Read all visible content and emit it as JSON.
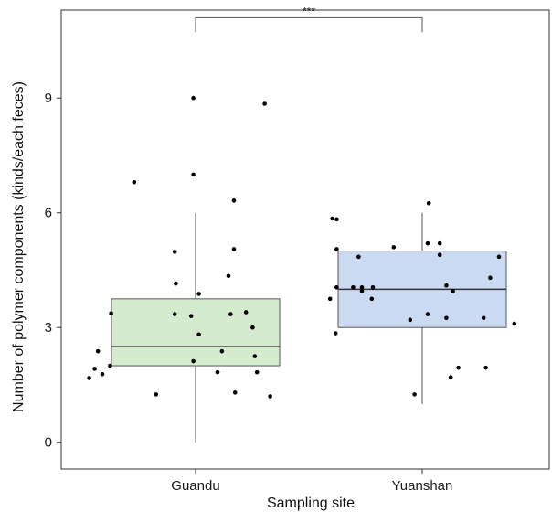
{
  "chart_data": {
    "type": "boxplot",
    "xlabel": "Sampling site",
    "ylabel": "Number of polymer components (kinds/each feces)",
    "categories": [
      "Guandu",
      "Yuanshan"
    ],
    "ylim": [
      -0.7,
      11.3
    ],
    "yticks": [
      0,
      3,
      6,
      9
    ],
    "grid": false,
    "colors": {
      "Guandu": "#d5ebcd",
      "Yuanshan": "#cbdaf3",
      "box_edge": "#555555",
      "median": "#333333",
      "points": "#000000"
    },
    "boxes": [
      {
        "category": "Guandu",
        "whisker_low": 0,
        "q1": 2,
        "median": 2.5,
        "q3": 3.75,
        "whisker_high": 6,
        "color": "#d5ebcd"
      },
      {
        "category": "Yuanshan",
        "whisker_low": 1,
        "q1": 3,
        "median": 4,
        "q3": 5,
        "whisker_high": 6,
        "color": "#cbdaf3"
      }
    ],
    "points": [
      {
        "category": "Guandu",
        "jitter": -0.97,
        "y": 1.68
      },
      {
        "category": "Guandu",
        "jitter": -0.92,
        "y": 1.92
      },
      {
        "category": "Guandu",
        "jitter": -0.89,
        "y": 2.38
      },
      {
        "category": "Guandu",
        "jitter": -0.85,
        "y": 1.78
      },
      {
        "category": "Guandu",
        "jitter": -0.78,
        "y": 2.0
      },
      {
        "category": "Guandu",
        "jitter": -0.77,
        "y": 3.37
      },
      {
        "category": "Guandu",
        "jitter": -0.56,
        "y": 6.8
      },
      {
        "category": "Guandu",
        "jitter": -0.36,
        "y": 1.25
      },
      {
        "category": "Guandu",
        "jitter": -0.19,
        "y": 3.35
      },
      {
        "category": "Guandu",
        "jitter": -0.19,
        "y": 4.98
      },
      {
        "category": "Guandu",
        "jitter": -0.18,
        "y": 4.15
      },
      {
        "category": "Guandu",
        "jitter": -0.04,
        "y": 3.3
      },
      {
        "category": "Guandu",
        "jitter": -0.02,
        "y": 9.0
      },
      {
        "category": "Guandu",
        "jitter": -0.02,
        "y": 7.0
      },
      {
        "category": "Guandu",
        "jitter": -0.02,
        "y": 2.12
      },
      {
        "category": "Guandu",
        "jitter": 0.03,
        "y": 2.82
      },
      {
        "category": "Guandu",
        "jitter": 0.03,
        "y": 3.88
      },
      {
        "category": "Guandu",
        "jitter": 0.2,
        "y": 1.83
      },
      {
        "category": "Guandu",
        "jitter": 0.24,
        "y": 2.38
      },
      {
        "category": "Guandu",
        "jitter": 0.3,
        "y": 4.35
      },
      {
        "category": "Guandu",
        "jitter": 0.32,
        "y": 3.35
      },
      {
        "category": "Guandu",
        "jitter": 0.35,
        "y": 6.32
      },
      {
        "category": "Guandu",
        "jitter": 0.35,
        "y": 5.05
      },
      {
        "category": "Guandu",
        "jitter": 0.36,
        "y": 1.3
      },
      {
        "category": "Guandu",
        "jitter": 0.46,
        "y": 3.4
      },
      {
        "category": "Guandu",
        "jitter": 0.52,
        "y": 3.0
      },
      {
        "category": "Guandu",
        "jitter": 0.54,
        "y": 2.25
      },
      {
        "category": "Guandu",
        "jitter": 0.56,
        "y": 1.83
      },
      {
        "category": "Guandu",
        "jitter": 0.63,
        "y": 8.85
      },
      {
        "category": "Guandu",
        "jitter": 0.68,
        "y": 1.2
      },
      {
        "category": "Yuanshan",
        "jitter": -0.84,
        "y": 3.75
      },
      {
        "category": "Yuanshan",
        "jitter": -0.82,
        "y": 5.85
      },
      {
        "category": "Yuanshan",
        "jitter": -0.78,
        "y": 5.83
      },
      {
        "category": "Yuanshan",
        "jitter": -0.78,
        "y": 5.05
      },
      {
        "category": "Yuanshan",
        "jitter": -0.78,
        "y": 4.05
      },
      {
        "category": "Yuanshan",
        "jitter": -0.79,
        "y": 2.85
      },
      {
        "category": "Yuanshan",
        "jitter": -0.63,
        "y": 4.05
      },
      {
        "category": "Yuanshan",
        "jitter": -0.58,
        "y": 4.85
      },
      {
        "category": "Yuanshan",
        "jitter": -0.55,
        "y": 3.95
      },
      {
        "category": "Yuanshan",
        "jitter": -0.55,
        "y": 4.05
      },
      {
        "category": "Yuanshan",
        "jitter": -0.46,
        "y": 3.75
      },
      {
        "category": "Yuanshan",
        "jitter": -0.45,
        "y": 4.05
      },
      {
        "category": "Yuanshan",
        "jitter": -0.26,
        "y": 5.1
      },
      {
        "category": "Yuanshan",
        "jitter": -0.11,
        "y": 3.2
      },
      {
        "category": "Yuanshan",
        "jitter": -0.07,
        "y": 1.25
      },
      {
        "category": "Yuanshan",
        "jitter": 0.06,
        "y": 6.25
      },
      {
        "category": "Yuanshan",
        "jitter": 0.05,
        "y": 3.35
      },
      {
        "category": "Yuanshan",
        "jitter": 0.05,
        "y": 5.2
      },
      {
        "category": "Yuanshan",
        "jitter": 0.16,
        "y": 4.9
      },
      {
        "category": "Yuanshan",
        "jitter": 0.16,
        "y": 5.2
      },
      {
        "category": "Yuanshan",
        "jitter": 0.22,
        "y": 4.1
      },
      {
        "category": "Yuanshan",
        "jitter": 0.22,
        "y": 3.25
      },
      {
        "category": "Yuanshan",
        "jitter": 0.26,
        "y": 1.7
      },
      {
        "category": "Yuanshan",
        "jitter": 0.28,
        "y": 3.95
      },
      {
        "category": "Yuanshan",
        "jitter": 0.33,
        "y": 1.95
      },
      {
        "category": "Yuanshan",
        "jitter": 0.58,
        "y": 1.95
      },
      {
        "category": "Yuanshan",
        "jitter": 0.56,
        "y": 3.25
      },
      {
        "category": "Yuanshan",
        "jitter": 0.62,
        "y": 4.3
      },
      {
        "category": "Yuanshan",
        "jitter": 0.7,
        "y": 4.85
      },
      {
        "category": "Yuanshan",
        "jitter": 0.84,
        "y": 3.1
      }
    ],
    "significance": {
      "from": "Guandu",
      "to": "Yuanshan",
      "label": "***",
      "y": 11.1
    }
  }
}
